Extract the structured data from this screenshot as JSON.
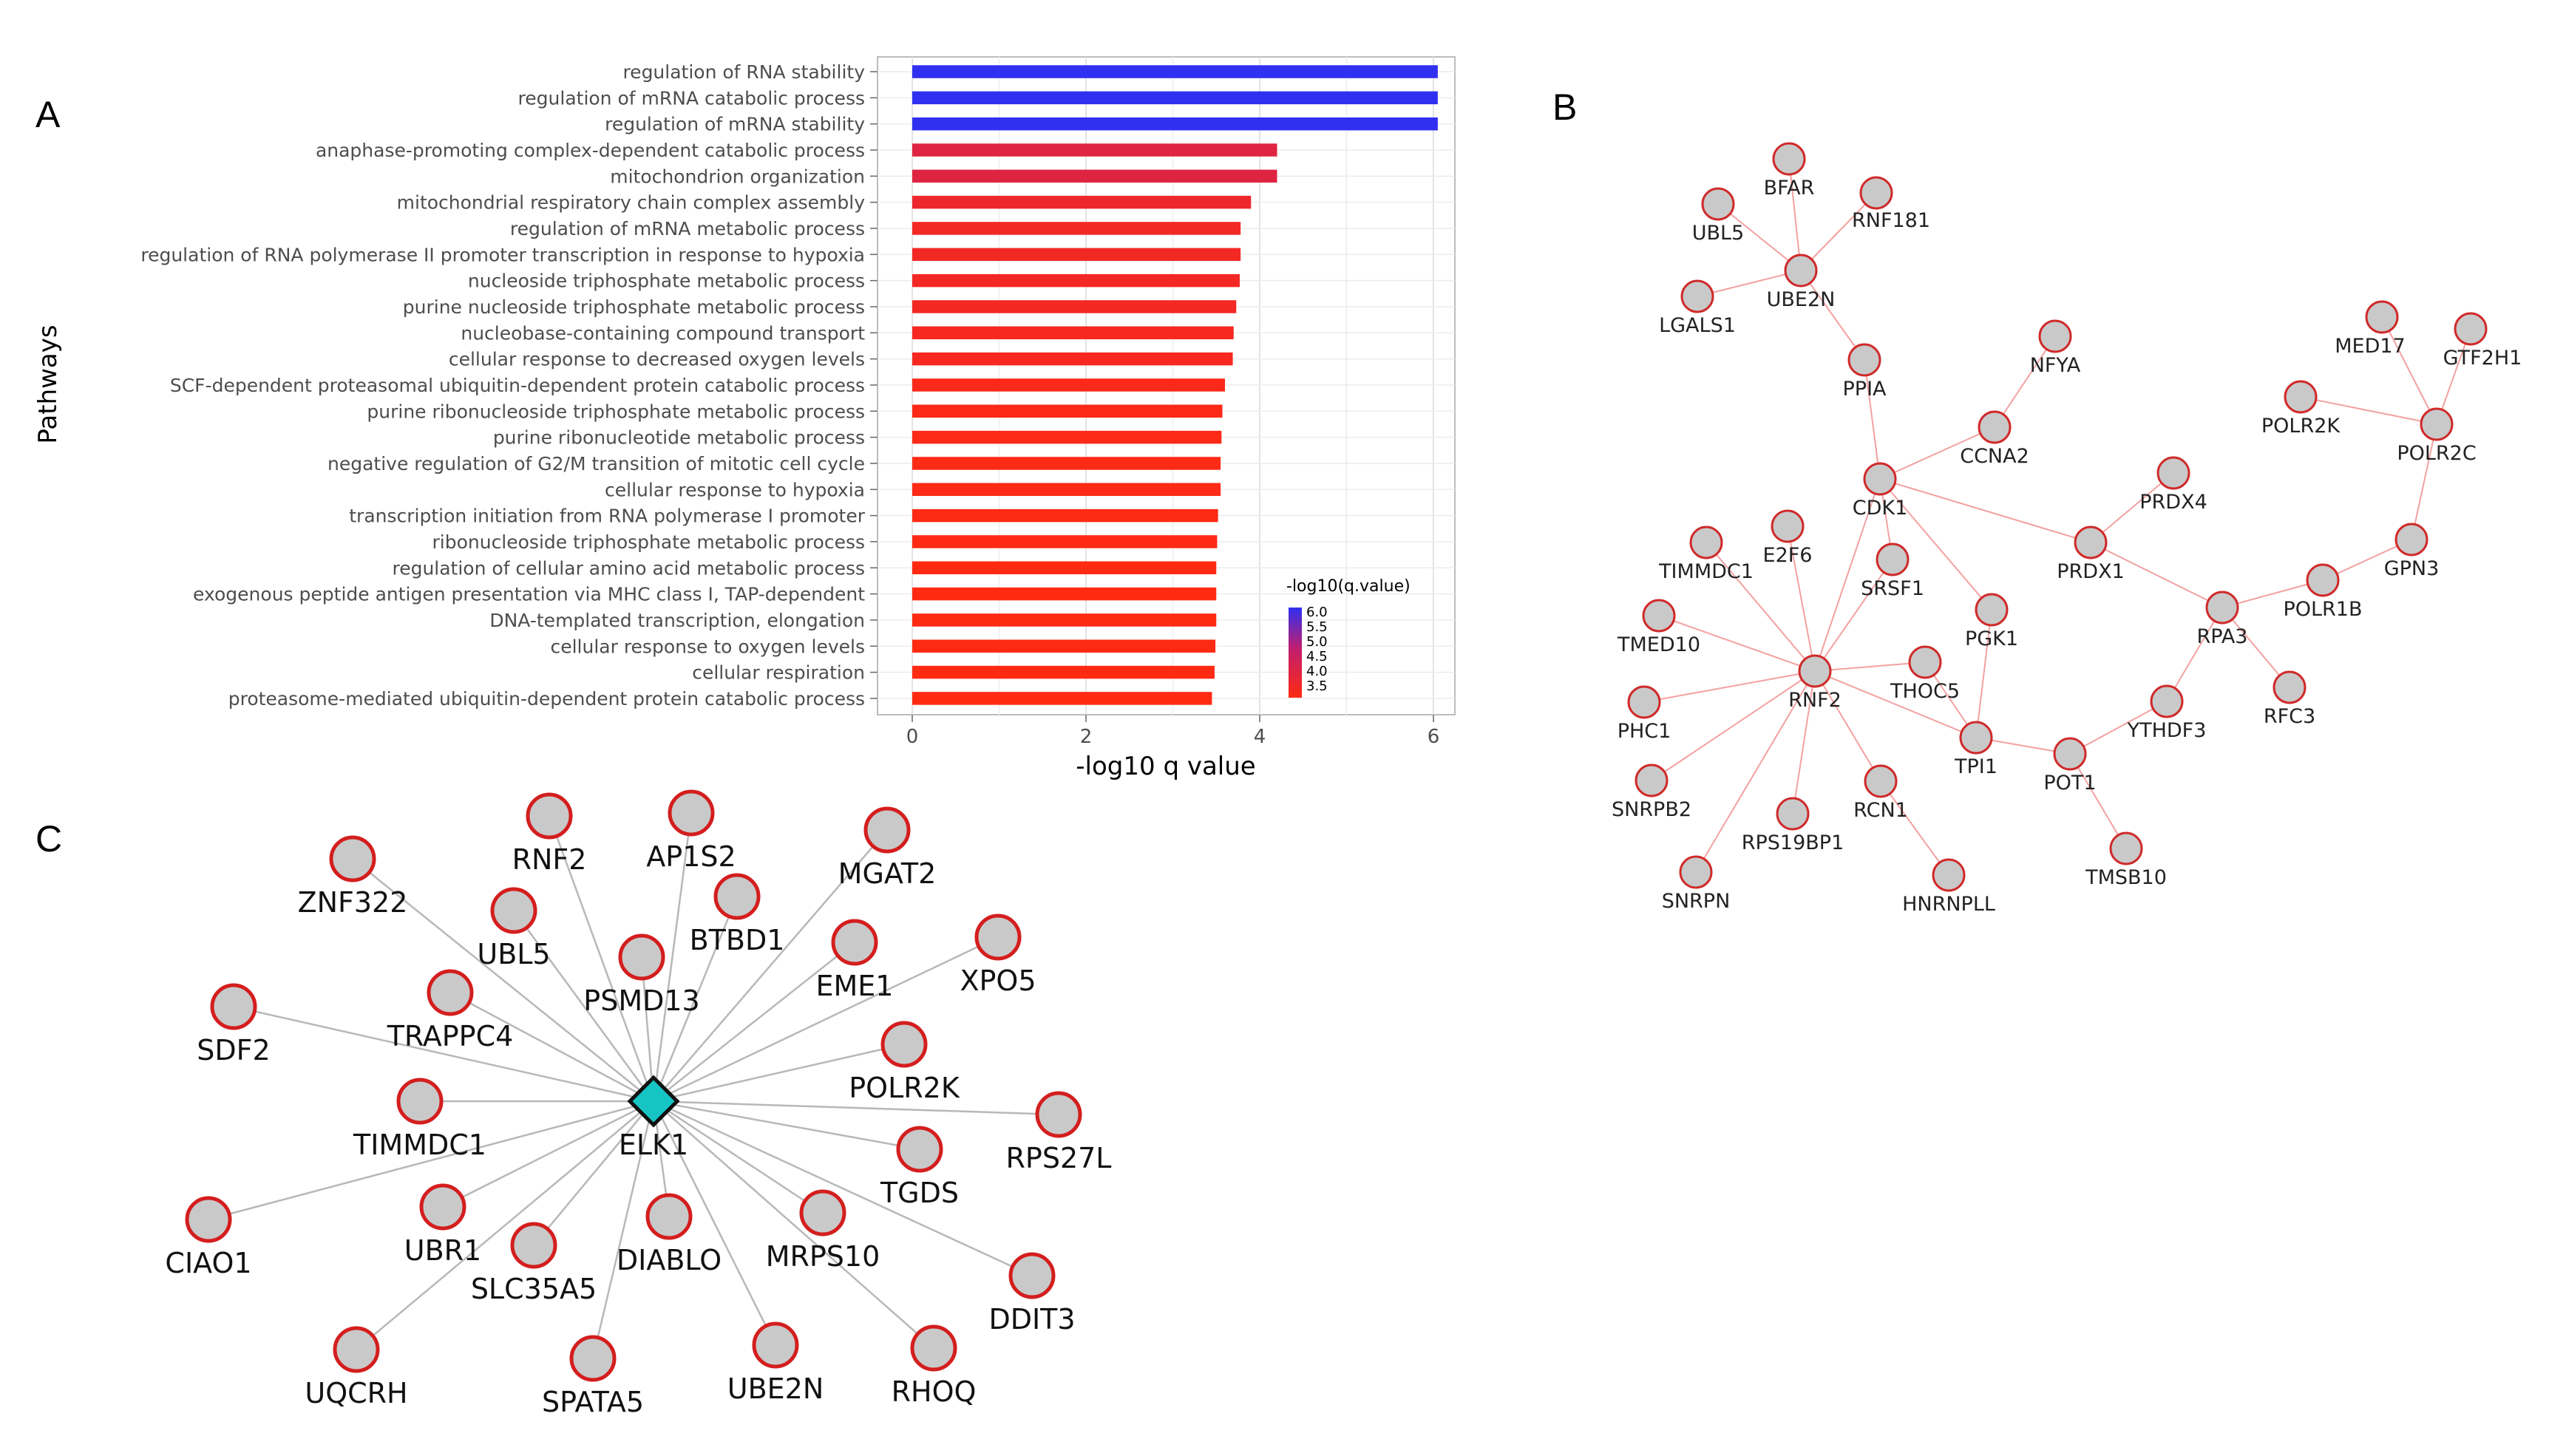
{
  "panel_labels": {
    "a": "A",
    "b": "B",
    "c": "C"
  },
  "chart_data": [
    {
      "type": "bar",
      "orientation": "horizontal",
      "panel": "A",
      "ylabel": "Pathways",
      "xlabel": "-log10 q value",
      "xlim": [
        0,
        6.4
      ],
      "xticks": [
        0,
        2,
        4,
        6
      ],
      "legend": {
        "title": "-log10(q.value)",
        "ticks": [
          "6.0",
          "5.5",
          "5.0",
          "4.5",
          "4.0",
          "3.5"
        ],
        "range": [
          3.5,
          6.0
        ],
        "colors": [
          "#ff2a12",
          "#c01e70",
          "#3030f0"
        ],
        "position": "right"
      },
      "categories": [
        "regulation of RNA stability",
        "regulation of mRNA catabolic process",
        "regulation of mRNA stability",
        "anaphase-promoting complex-dependent catabolic process",
        "mitochondrion organization",
        "mitochondrial respiratory chain complex assembly",
        "regulation of mRNA metabolic process",
        "regulation of RNA polymerase II promoter transcription in response to hypoxia",
        "nucleoside triphosphate metabolic process",
        "purine nucleoside triphosphate metabolic process",
        "nucleobase-containing compound transport",
        "cellular response to decreased oxygen levels",
        "SCF-dependent proteasomal ubiquitin-dependent protein catabolic process",
        "purine ribonucleoside triphosphate metabolic process",
        "purine ribonucleotide metabolic process",
        "negative regulation of G2/M transition of mitotic cell cycle",
        "cellular response to hypoxia",
        "transcription initiation from RNA polymerase I promoter",
        "ribonucleoside triphosphate metabolic process",
        "regulation of cellular amino acid metabolic process",
        "exogenous peptide antigen presentation via MHC class I, TAP-dependent",
        "DNA-templated transcription, elongation",
        "cellular response to oxygen levels",
        "cellular respiration",
        "proteasome-mediated ubiquitin-dependent protein catabolic process"
      ],
      "values": [
        6.05,
        6.05,
        6.05,
        4.2,
        4.2,
        3.9,
        3.78,
        3.78,
        3.77,
        3.73,
        3.7,
        3.69,
        3.6,
        3.57,
        3.56,
        3.55,
        3.55,
        3.52,
        3.51,
        3.5,
        3.5,
        3.5,
        3.49,
        3.48,
        3.45
      ]
    },
    {
      "type": "network",
      "panel": "B",
      "nodes": [
        "UBL5",
        "BFAR",
        "RNF181",
        "UBE2N",
        "LGALS1",
        "PPIA",
        "NFYA",
        "CCNA2",
        "CDK1",
        "MED17",
        "GTF2H1",
        "POLR2K",
        "POLR2C",
        "PRDX4",
        "PRDX1",
        "GPN3",
        "RPA3",
        "POLR1B",
        "RFC3",
        "E2F6",
        "TIMMDC1",
        "SRSF1",
        "PGK1",
        "TMED10",
        "THOC5",
        "RNF2",
        "PHC1",
        "TPI1",
        "POT1",
        "YTHDF3",
        "SNRPB2",
        "RCN1",
        "RPS19BP1",
        "TMSB10",
        "SNRPN",
        "HNRNPLL"
      ],
      "edges": [
        [
          "UBL5",
          "UBE2N"
        ],
        [
          "BFAR",
          "UBE2N"
        ],
        [
          "RNF181",
          "UBE2N"
        ],
        [
          "LGALS1",
          "UBE2N"
        ],
        [
          "UBE2N",
          "PPIA"
        ],
        [
          "PPIA",
          "CDK1"
        ],
        [
          "NFYA",
          "CCNA2"
        ],
        [
          "CCNA2",
          "CDK1"
        ],
        [
          "CDK1",
          "PRDX1"
        ],
        [
          "CDK1",
          "PGK1"
        ],
        [
          "CDK1",
          "RNF2"
        ],
        [
          "CDK1",
          "SRSF1"
        ],
        [
          "PRDX1",
          "PRDX4"
        ],
        [
          "PRDX1",
          "RPA3"
        ],
        [
          "MED17",
          "POLR2C"
        ],
        [
          "GTF2H1",
          "POLR2C"
        ],
        [
          "POLR2K",
          "POLR2C"
        ],
        [
          "POLR2C",
          "GPN3"
        ],
        [
          "GPN3",
          "POLR1B"
        ],
        [
          "POLR1B",
          "RPA3"
        ],
        [
          "RPA3",
          "RFC3"
        ],
        [
          "RPA3",
          "YTHDF3"
        ],
        [
          "YTHDF3",
          "POT1"
        ],
        [
          "POT1",
          "TMSB10"
        ],
        [
          "POT1",
          "TPI1"
        ],
        [
          "TPI1",
          "PGK1"
        ],
        [
          "TPI1",
          "THOC5"
        ],
        [
          "RNF2",
          "E2F6"
        ],
        [
          "RNF2",
          "TIMMDC1"
        ],
        [
          "RNF2",
          "SRSF1"
        ],
        [
          "RNF2",
          "TMED10"
        ],
        [
          "RNF2",
          "THOC5"
        ],
        [
          "RNF2",
          "PHC1"
        ],
        [
          "RNF2",
          "TPI1"
        ],
        [
          "RNF2",
          "SNRPB2"
        ],
        [
          "RNF2",
          "RCN1"
        ],
        [
          "RNF2",
          "RPS19BP1"
        ],
        [
          "RNF2",
          "SNRPN"
        ],
        [
          "RCN1",
          "HNRNPLL"
        ]
      ]
    },
    {
      "type": "network",
      "panel": "C",
      "hub": "ELK1",
      "nodes": [
        "ZNF322",
        "RNF2",
        "AP1S2",
        "MGAT2",
        "UBL5",
        "BTBD1",
        "PSMD13",
        "EME1",
        "XPO5",
        "SDF2",
        "TRAPPC4",
        "POLR2K",
        "TIMMDC1",
        "RPS27L",
        "TGDS",
        "CIAO1",
        "UBR1",
        "DIABLO",
        "MRPS10",
        "SLC35A5",
        "DDIT3",
        "UQCRH",
        "SPATA5",
        "UBE2N",
        "RHOQ"
      ],
      "edges_to_hub": "all"
    }
  ]
}
